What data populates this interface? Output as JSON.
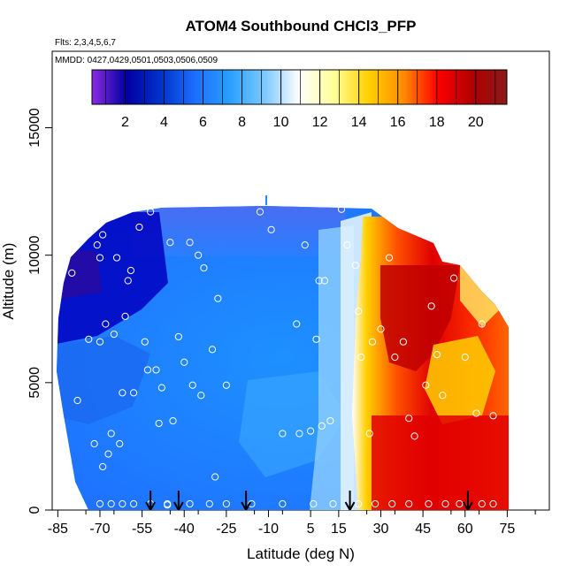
{
  "chart_data": {
    "type": "heatmap",
    "title": "ATOM4 Southbound CHCl3_PFP",
    "flights_note": "Flts: 2,3,4,5,6,7",
    "dates_note": "MMDD: 0427,0429,0501,0503,0506,0509",
    "xlabel": "Latitude (deg N)",
    "ylabel": "Altitude (m)",
    "xlim": [
      -87,
      90
    ],
    "ylim": [
      0,
      18000
    ],
    "x_ticks": [
      -85,
      -70,
      -55,
      -40,
      -25,
      -10,
      5,
      15,
      30,
      45,
      60,
      75
    ],
    "y_ticks": [
      0,
      5000,
      10000,
      15000
    ],
    "colorbar": {
      "min": 0.3,
      "max": 21.6,
      "ticks": [
        2,
        4,
        6,
        8,
        10,
        12,
        14,
        16,
        18,
        20
      ],
      "colors": [
        "#8a2be2",
        "#0000a0",
        "#0033cc",
        "#1e6fff",
        "#2aa0ff",
        "#7ec8ff",
        "#ffffff",
        "#ffff99",
        "#ffd000",
        "#ff8c00",
        "#ff0000",
        "#b00000",
        "#8b1a1a"
      ]
    },
    "sample_points": [
      [
        -84,
        9.5
      ],
      [
        -80,
        9.3
      ],
      [
        -78,
        4.3
      ],
      [
        -74,
        6.7
      ],
      [
        -72,
        2.6
      ],
      [
        -71,
        10.4
      ],
      [
        -70,
        9.9
      ],
      [
        -70,
        6.6
      ],
      [
        -69,
        1.7
      ],
      [
        -69,
        10.8
      ],
      [
        -68,
        7.3
      ],
      [
        -67,
        2.2
      ],
      [
        -66,
        3.0
      ],
      [
        -65,
        6.9
      ],
      [
        -64,
        9.9
      ],
      [
        -63,
        2.6
      ],
      [
        -62,
        4.6
      ],
      [
        -61,
        7.6
      ],
      [
        -60,
        9.0
      ],
      [
        -59,
        9.4
      ],
      [
        -58,
        4.6
      ],
      [
        -56,
        11.1
      ],
      [
        -54,
        6.6
      ],
      [
        -53,
        5.5
      ],
      [
        -52,
        11.7
      ],
      [
        -50,
        5.5
      ],
      [
        -49,
        3.4
      ],
      [
        -48,
        4.8
      ],
      [
        -46,
        0.2
      ],
      [
        -45,
        10.5
      ],
      [
        -44,
        3.5
      ],
      [
        -42,
        6.8
      ],
      [
        -40,
        5.8
      ],
      [
        -38,
        10.5
      ],
      [
        -37,
        4.9
      ],
      [
        -35,
        10.0
      ],
      [
        -34,
        4.5
      ],
      [
        -33,
        9.5
      ],
      [
        -30,
        6.3
      ],
      [
        -29,
        1.3
      ],
      [
        -28,
        8.3
      ],
      [
        -25,
        4.9
      ],
      [
        -13,
        11.7
      ],
      [
        -9,
        11.0
      ],
      [
        -5,
        3.0
      ],
      [
        0,
        7.3
      ],
      [
        1,
        3.0
      ],
      [
        3,
        10.4
      ],
      [
        5,
        3.1
      ],
      [
        7,
        6.7
      ],
      [
        8,
        9.0
      ],
      [
        9,
        3.3
      ],
      [
        10,
        9.0
      ],
      [
        12,
        3.5
      ],
      [
        16,
        11.8
      ],
      [
        18,
        10.4
      ],
      [
        21,
        9.6
      ],
      [
        22,
        7.8
      ],
      [
        23,
        6.0
      ],
      [
        26,
        3.0
      ],
      [
        27,
        6.6
      ],
      [
        30,
        7.1
      ],
      [
        33,
        9.9
      ],
      [
        35,
        6.0
      ],
      [
        38,
        6.6
      ],
      [
        40,
        3.6
      ],
      [
        42,
        2.9
      ],
      [
        46,
        4.9
      ],
      [
        48,
        8.0
      ],
      [
        50,
        6.1
      ],
      [
        52,
        4.5
      ],
      [
        56,
        9.1
      ],
      [
        60,
        6.0
      ],
      [
        64,
        3.8
      ],
      [
        66,
        7.3
      ],
      [
        70,
        3.7
      ]
    ],
    "flight_markers_lat": [
      -52,
      -42,
      -18,
      19,
      61
    ]
  }
}
